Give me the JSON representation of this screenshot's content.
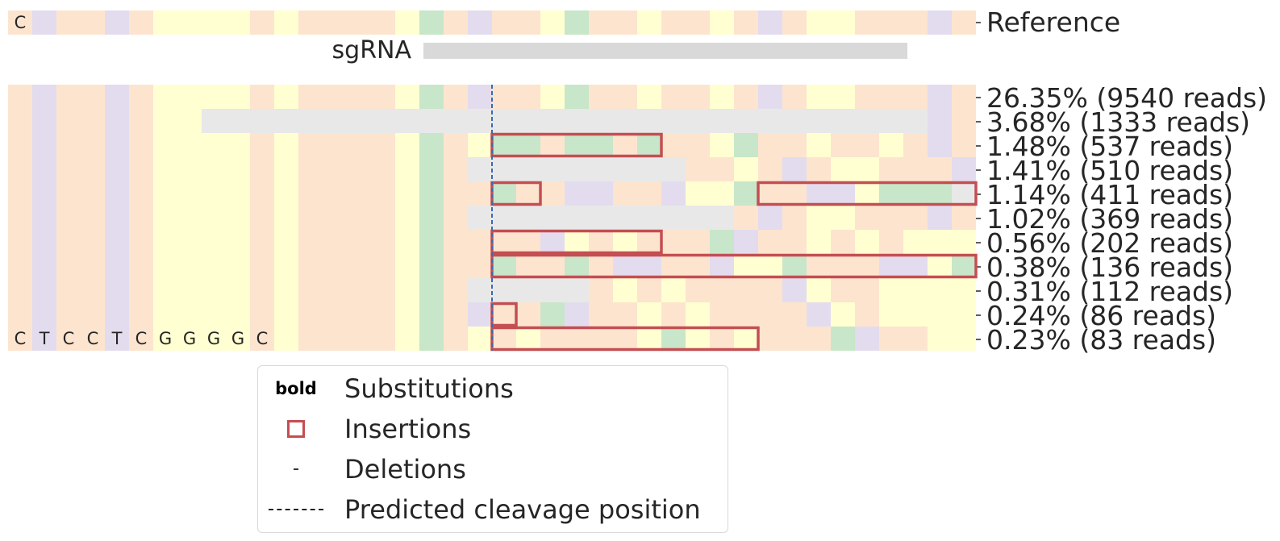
{
  "colors": {
    "A": "#c8e6c9",
    "T": "#e3dcee",
    "C": "#fde4cf",
    "G": "#ffffd2",
    "deletion": "#e8e8e8",
    "sgRNA": "#d9d9d9",
    "insertion": "#c44e52",
    "cleavage": "#3b6ab3"
  },
  "reference": {
    "label": "Reference",
    "sequence": "CTCCTCGGGGCGCCCCGACTCCGACCGCCGCTCGGCCCTCGCGGGGCC",
    "first_letter": "C"
  },
  "sgrna": {
    "label": "sgRNA",
    "start": 17,
    "end": 37
  },
  "cleavage_position": 20,
  "rows": [
    {
      "label": "26.35% (9540 reads)",
      "seq": "CTCCTCGGGGCGCCCCGACTCCGACCGCCGCTCGGCCCTCGCGGGGCC",
      "insertions": []
    },
    {
      "label": "3.68% (1333 reads)",
      "seq": "CTCCTCGG------------------------------------------------------------------------------------------------------------------------------------",
      "insertions": []
    },
    {
      "label": "1.48% (537 reads)",
      "seq": "CTCCTCGGGGCGCCCCGACGAACAACACCGACCGCCGCTCGGCCCCTT",
      "insertions": [
        [
          20,
          26
        ]
      ]
    },
    {
      "label": "1.41% (510 reads)",
      "seq": "CTCCTCGGGGCGCCCCGAC---------CCGCTCGGCCCTCGCGGGGC",
      "insertions": []
    },
    {
      "label": "1.14% (411 reads)",
      "seq": "CTCCTCGGGGCGCCCCGACCACCTTCCTGGACCTTGAAA",
      "insertions": [
        [
          20,
          21
        ],
        [
          31,
          39
        ]
      ]
    },
    {
      "label": "1.02% (369 reads)",
      "seq": "CTCCTCGGGGCGCCCCGAC-----------CTCGGCCCTCGCGGGGCC",
      "insertions": []
    },
    {
      "label": "0.56% (202 reads)",
      "seq": "CTCCTCGGGGCGCCCCGACCCCTGCGCCCATCCGCGCGGGGCCT",
      "insertions": [
        [
          20,
          26
        ]
      ]
    },
    {
      "label": "0.38% (136 reads)",
      "seq": "CTCCTCGGGGCGCCCCGACCACCACTTCCTGGACCCTTGA",
      "insertions": [
        [
          20,
          39
        ]
      ]
    },
    {
      "label": "0.31% (112 reads)",
      "seq": "CTCCTCGGGGCGCCCCGAC-----CGCGCCCCTGCCGGGGCC",
      "insertions": []
    },
    {
      "label": "0.24% (86 reads)",
      "seq": "CTCCTCGGGGCGCCCCGACTCCATCCGCGCCCCTGCGGGGGC",
      "insertions": [
        [
          20,
          20
        ]
      ]
    },
    {
      "label": "0.23% (83 reads)",
      "seq": "CTCCTCGGGGCGCCCCGACGCGCCCCGAGCGCCCATCCGGCGGG",
      "insertions": [
        [
          20,
          30
        ]
      ]
    }
  ],
  "bottom_letters": [
    "C",
    "T",
    "C",
    "C",
    "T",
    "C",
    "G",
    "G",
    "G",
    "G",
    "C"
  ],
  "legend": {
    "substitutions_handle": "bold",
    "substitutions": "Substitutions",
    "insertions": "Insertions",
    "deletions_handle": "-",
    "deletions": "Deletions",
    "cleavage": "Predicted cleavage position"
  }
}
